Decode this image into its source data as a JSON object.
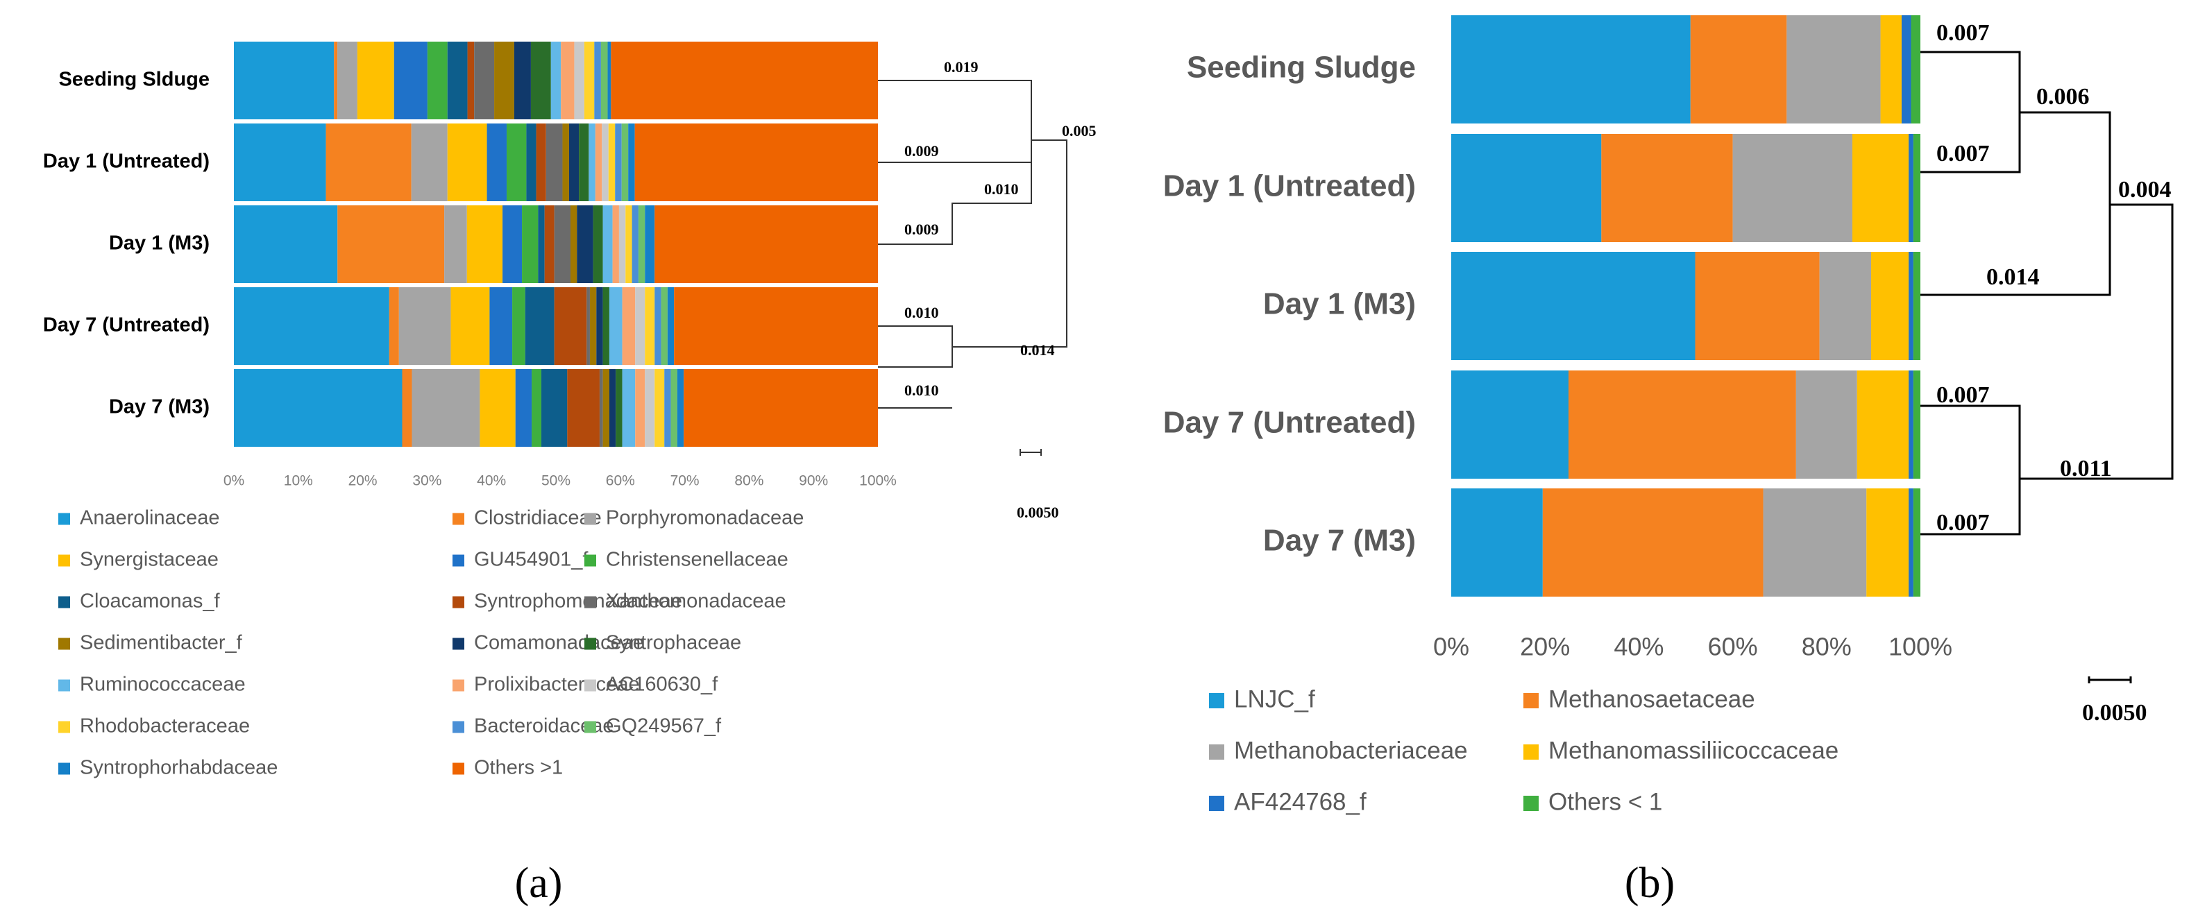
{
  "panels": [
    {
      "id": "a",
      "caption": "(a)",
      "chart_data": {
        "type": "bar",
        "orientation": "horizontal",
        "stacked": true,
        "title": "",
        "xlabel": "",
        "ylabel": "",
        "xlim": [
          0,
          100
        ],
        "grid": false,
        "legend_position": "bottom",
        "categories": [
          "Seeding Slduge",
          "Day 1 (Untreated)",
          "Day 1 (M3)",
          "Day 7 (Untreated)",
          "Day 7 (M3)"
        ],
        "x_ticks": [
          "0%",
          "10%",
          "20%",
          "30%",
          "40%",
          "50%",
          "60%",
          "70%",
          "80%",
          "90%",
          "100%"
        ],
        "series": [
          {
            "name": "Anaerolinaceae",
            "color": "#1a9bd7",
            "values": [
              15.0,
              14.0,
              16.0,
              24.0,
              26.0
            ]
          },
          {
            "name": "Clostridiaceae",
            "color": "#f58220",
            "values": [
              0.5,
              13.0,
              16.5,
              1.5,
              1.5
            ]
          },
          {
            "name": "Porphyromonadaceae",
            "color": "#a5a5a5",
            "values": [
              3.0,
              5.5,
              3.5,
              8.0,
              10.5
            ]
          },
          {
            "name": "Synergistaceae",
            "color": "#ffc000",
            "values": [
              5.5,
              6.0,
              5.5,
              6.0,
              5.5
            ]
          },
          {
            "name": "GU454901_f",
            "color": "#1f72c9",
            "values": [
              5.0,
              3.0,
              3.0,
              3.5,
              2.5
            ]
          },
          {
            "name": "Christensenellaceae",
            "color": "#3faf3f",
            "values": [
              3.0,
              3.0,
              2.5,
              2.0,
              1.5
            ]
          },
          {
            "name": "Cloacamonas_f",
            "color": "#0d5e8c",
            "values": [
              3.0,
              1.5,
              1.0,
              4.5,
              4.0
            ]
          },
          {
            "name": "Syntrophomonadaceae",
            "color": "#b34a0c",
            "values": [
              1.0,
              1.5,
              1.5,
              5.0,
              5.0
            ]
          },
          {
            "name": "Xanthomonadaceae",
            "color": "#6b6b6b",
            "values": [
              3.0,
              2.5,
              2.5,
              0.5,
              0.5
            ]
          },
          {
            "name": "Sedimentibacter_f",
            "color": "#a07800",
            "values": [
              3.0,
              1.0,
              1.0,
              1.0,
              1.0
            ]
          },
          {
            "name": "Comamonadaceae",
            "color": "#10396b",
            "values": [
              2.5,
              1.5,
              2.5,
              1.0,
              1.0
            ]
          },
          {
            "name": "Syntrophaceae",
            "color": "#2a6e2a",
            "values": [
              3.0,
              1.5,
              1.5,
              1.0,
              1.0
            ]
          },
          {
            "name": "Ruminococcaceae",
            "color": "#62b8e8",
            "values": [
              1.5,
              1.0,
              1.5,
              2.0,
              2.0
            ]
          },
          {
            "name": "Prolixibacteraceae",
            "color": "#f9a46e",
            "values": [
              2.0,
              1.0,
              1.0,
              2.0,
              1.5
            ]
          },
          {
            "name": "AC160630_f",
            "color": "#c9c9c9",
            "values": [
              1.5,
              1.0,
              1.0,
              1.5,
              1.5
            ]
          },
          {
            "name": "Rhodobacteraceae",
            "color": "#ffd32a",
            "values": [
              1.5,
              1.0,
              1.0,
              1.5,
              1.5
            ]
          },
          {
            "name": "Bacteroidaceae",
            "color": "#4a8fd6",
            "values": [
              1.0,
              1.0,
              1.0,
              1.0,
              1.0
            ]
          },
          {
            "name": "GQ249567_f",
            "color": "#6cc06c",
            "values": [
              1.0,
              1.0,
              1.0,
              1.0,
              1.0
            ]
          },
          {
            "name": "Syntrophorhabdaceae",
            "color": "#1580c8",
            "values": [
              0.5,
              1.0,
              1.5,
              1.0,
              1.0
            ]
          },
          {
            "name": "Others >1",
            "color": "#ee6400",
            "values": [
              40.0,
              37.0,
              34.5,
              31.5,
              30.0
            ]
          }
        ]
      },
      "dendrogram": {
        "scale_label": "0.0050",
        "labels": [
          "0.019",
          "0.009",
          "0.010",
          "0.005",
          "0.009",
          "0.010",
          "0.014",
          "0.010"
        ]
      }
    },
    {
      "id": "b",
      "caption": "(b)",
      "chart_data": {
        "type": "bar",
        "orientation": "horizontal",
        "stacked": true,
        "title": "",
        "xlabel": "",
        "ylabel": "",
        "xlim": [
          0,
          100
        ],
        "grid": false,
        "legend_position": "bottom",
        "categories": [
          "Seeding Sludge",
          "Day 1 (Untreated)",
          "Day 1 (M3)",
          "Day 7 (Untreated)",
          "Day 7 (M3)"
        ],
        "x_ticks": [
          "0%",
          "20%",
          "40%",
          "60%",
          "80%",
          "100%"
        ],
        "series": [
          {
            "name": "LNJC_f",
            "color": "#1a9bd7",
            "values": [
              51.0,
              32.0,
              52.0,
              25.0,
              19.5
            ]
          },
          {
            "name": "Methanosaetaceae",
            "color": "#f58220",
            "values": [
              20.5,
              28.0,
              26.5,
              48.5,
              47.0
            ]
          },
          {
            "name": "Methanobacteriaceae",
            "color": "#a5a5a5",
            "values": [
              20.0,
              25.5,
              11.0,
              13.0,
              22.0
            ]
          },
          {
            "name": "Methanomassiliicoccaceae",
            "color": "#ffc000",
            "values": [
              4.5,
              12.0,
              8.0,
              11.0,
              9.0
            ]
          },
          {
            "name": "AF424768_f",
            "color": "#1f72c9",
            "values": [
              2.0,
              1.0,
              1.0,
              1.0,
              1.0
            ]
          },
          {
            "name": "Others < 1",
            "color": "#3faf3f",
            "values": [
              2.0,
              1.5,
              1.5,
              1.5,
              1.5
            ]
          }
        ]
      },
      "dendrogram": {
        "scale_label": "0.0050",
        "labels": [
          "0.007",
          "0.007",
          "0.006",
          "0.014",
          "0.004",
          "0.007",
          "0.007",
          "0.011"
        ]
      }
    }
  ]
}
